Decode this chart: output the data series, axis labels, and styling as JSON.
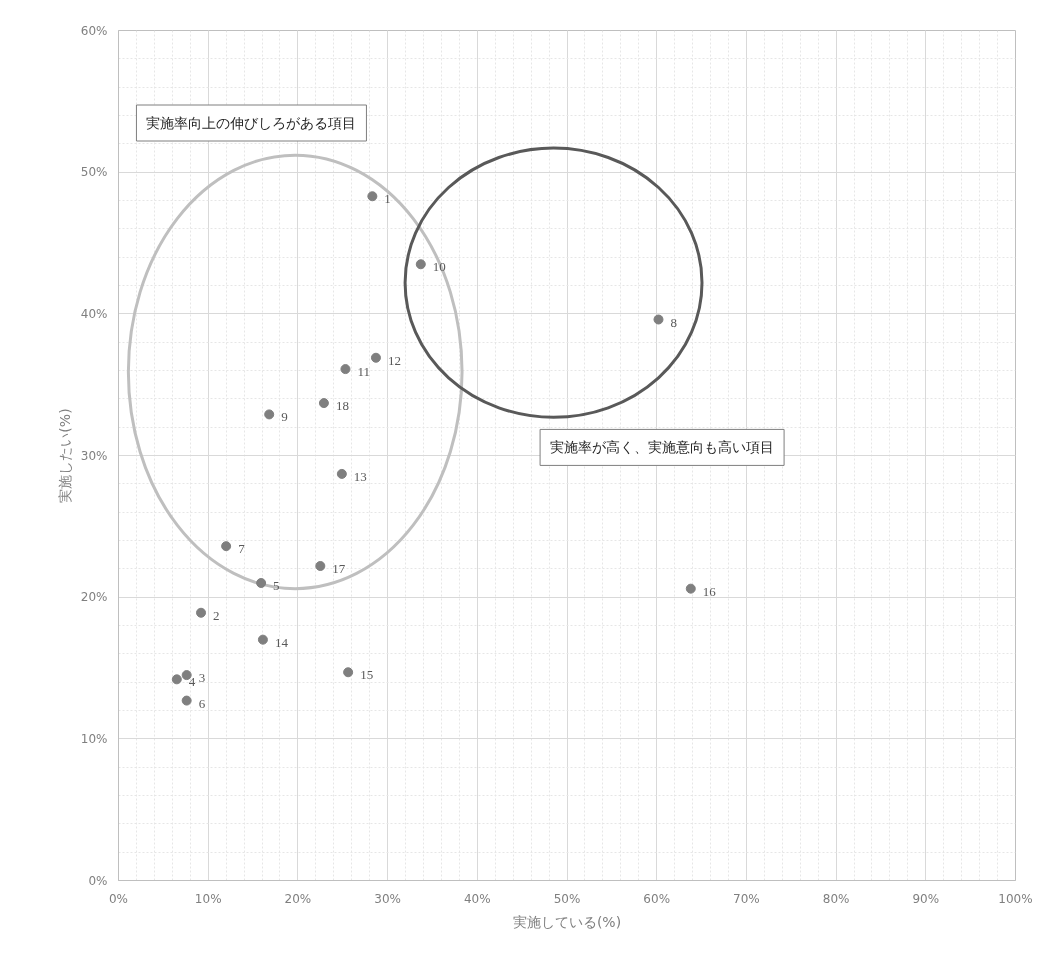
{
  "chart_data": {
    "type": "scatter",
    "xlabel": "実施している(%)",
    "ylabel": "実施したい(%)",
    "x": [
      28.3,
      9.2,
      7.6,
      6.5,
      15.9,
      7.6,
      12.0,
      60.2,
      16.8,
      33.7,
      25.3,
      28.7,
      24.9,
      16.1,
      25.6,
      63.8,
      22.5,
      22.9
    ],
    "series": [
      {
        "color": "#7f7f7f",
        "values": [
          48.3,
          18.9,
          14.5,
          14.2,
          21.0,
          12.7,
          23.6,
          39.6,
          32.9,
          43.5,
          36.1,
          36.9,
          28.7,
          17.0,
          14.7,
          20.6,
          22.2,
          33.7
        ]
      }
    ],
    "value_labels": [
      "1",
      "2",
      "3",
      "4",
      "5",
      "6",
      "7",
      "8",
      "9",
      "10",
      "11",
      "12",
      "13",
      "14",
      "15",
      "16",
      "17",
      "18"
    ],
    "annotations": [
      "実施率向上の伸びしろがある項目",
      "実施率が高く、実施意向も高い項目"
    ],
    "xlim": [
      0,
      100
    ],
    "ylim": [
      0,
      60
    ],
    "xticks": [
      {
        "value": 0,
        "label": "0%"
      },
      {
        "value": 10,
        "label": "10%"
      },
      {
        "value": 20,
        "label": "20%"
      },
      {
        "value": 30,
        "label": "30%"
      },
      {
        "value": 40,
        "label": "40%"
      },
      {
        "value": 50,
        "label": "50%"
      },
      {
        "value": 60,
        "label": "60%"
      },
      {
        "value": 70,
        "label": "70%"
      },
      {
        "value": 80,
        "label": "80%"
      },
      {
        "value": 90,
        "label": "90%"
      },
      {
        "value": 100,
        "label": "100%"
      }
    ],
    "yticks": [
      {
        "value": 0,
        "label": "0%"
      },
      {
        "value": 10,
        "label": "10%"
      },
      {
        "value": 20,
        "label": "20%"
      },
      {
        "value": 30,
        "label": "30%"
      },
      {
        "value": 40,
        "label": "40%"
      },
      {
        "value": 50,
        "label": "50%"
      },
      {
        "value": 60,
        "label": "60%"
      }
    ],
    "grid": true,
    "marker": "circle"
  }
}
